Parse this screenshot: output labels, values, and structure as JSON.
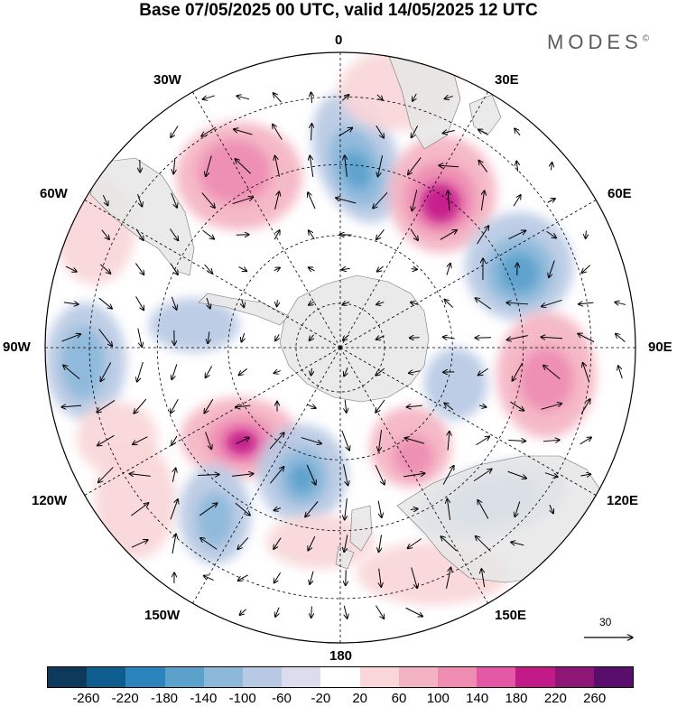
{
  "title": "Base 07/05/2025 00 UTC, valid 14/05/2025 12 UTC",
  "brand": "MODES",
  "brand_mark": "©",
  "longitude_labels": {
    "l0": "0",
    "l30e": "30E",
    "l60e": "60E",
    "l90e": "90E",
    "l120e": "120E",
    "l150e": "150E",
    "l180": "180",
    "l150w": "150W",
    "l120w": "120W",
    "l90w": "90W",
    "l60w": "60W",
    "l30w": "30W"
  },
  "vector_scale_label": "30",
  "colorbar": {
    "colors": [
      "#0d3a5c",
      "#0d5e8e",
      "#2b84bb",
      "#5aa1cc",
      "#8cb8da",
      "#b8c9e4",
      "#dddcee",
      "#ffffff",
      "#f9d6d8",
      "#f4b3c2",
      "#ee8cb2",
      "#e457a4",
      "#c31a8a",
      "#8d1677",
      "#5a0e6b"
    ],
    "ticks": [
      "-260",
      "-220",
      "-180",
      "-140",
      "-100",
      "-60",
      "-20",
      "20",
      "60",
      "100",
      "140",
      "180",
      "220",
      "260"
    ]
  },
  "map_colors": {
    "land": "#e6e6e6",
    "grid": "#000000",
    "arrow": "#000000"
  }
}
